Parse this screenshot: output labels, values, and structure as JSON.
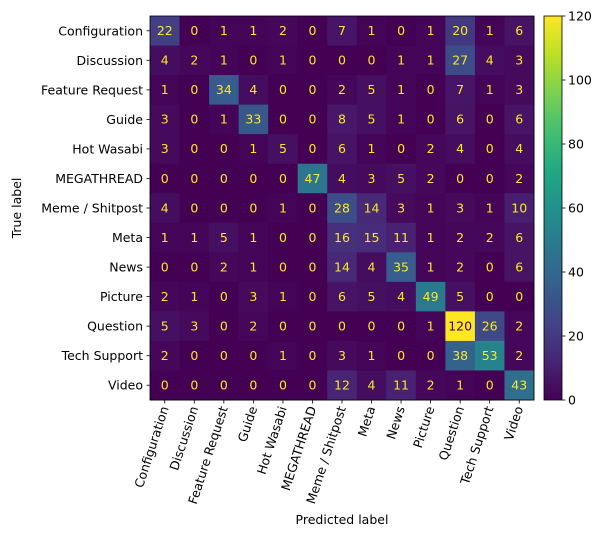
{
  "chart_data": {
    "type": "heatmap",
    "title": "",
    "xlabel": "Predicted label",
    "ylabel": "True label",
    "row_labels": [
      "Configuration",
      "Discussion",
      "Feature Request",
      "Guide",
      "Hot Wasabi",
      "MEGATHREAD",
      "Meme / Shitpost",
      "Meta",
      "News",
      "Picture",
      "Question",
      "Tech Support",
      "Video"
    ],
    "col_labels": [
      "Configuration",
      "Discussion",
      "Feature Request",
      "Guide",
      "Hot Wasabi",
      "MEGATHREAD",
      "Meme / Shitpost",
      "Meta",
      "News",
      "Picture",
      "Question",
      "Tech Support",
      "Video"
    ],
    "values": [
      [
        22,
        0,
        1,
        1,
        2,
        0,
        7,
        1,
        0,
        1,
        20,
        1,
        6
      ],
      [
        4,
        2,
        1,
        0,
        1,
        0,
        0,
        0,
        1,
        1,
        27,
        4,
        3
      ],
      [
        1,
        0,
        34,
        4,
        0,
        0,
        2,
        5,
        1,
        0,
        7,
        1,
        3
      ],
      [
        3,
        0,
        1,
        33,
        0,
        0,
        8,
        5,
        1,
        0,
        6,
        0,
        6
      ],
      [
        3,
        0,
        0,
        1,
        5,
        0,
        6,
        1,
        0,
        2,
        4,
        0,
        4
      ],
      [
        0,
        0,
        0,
        0,
        0,
        47,
        4,
        3,
        5,
        2,
        0,
        0,
        2
      ],
      [
        4,
        0,
        0,
        0,
        1,
        0,
        28,
        14,
        3,
        1,
        3,
        1,
        10
      ],
      [
        1,
        1,
        5,
        1,
        0,
        0,
        16,
        15,
        11,
        1,
        2,
        2,
        6
      ],
      [
        0,
        0,
        2,
        1,
        0,
        0,
        14,
        4,
        35,
        1,
        2,
        0,
        6
      ],
      [
        2,
        1,
        0,
        3,
        1,
        0,
        6,
        5,
        4,
        49,
        5,
        0,
        0
      ],
      [
        5,
        3,
        0,
        2,
        0,
        0,
        0,
        0,
        0,
        1,
        120,
        26,
        2
      ],
      [
        2,
        0,
        0,
        0,
        1,
        0,
        3,
        1,
        0,
        0,
        38,
        53,
        2
      ],
      [
        0,
        0,
        0,
        0,
        0,
        0,
        12,
        4,
        11,
        2,
        1,
        0,
        43
      ]
    ],
    "colorbar": {
      "min": 0,
      "max": 120,
      "ticks": [
        0,
        20,
        40,
        60,
        80,
        100,
        120
      ],
      "colormap": "viridis"
    },
    "grid": false
  }
}
